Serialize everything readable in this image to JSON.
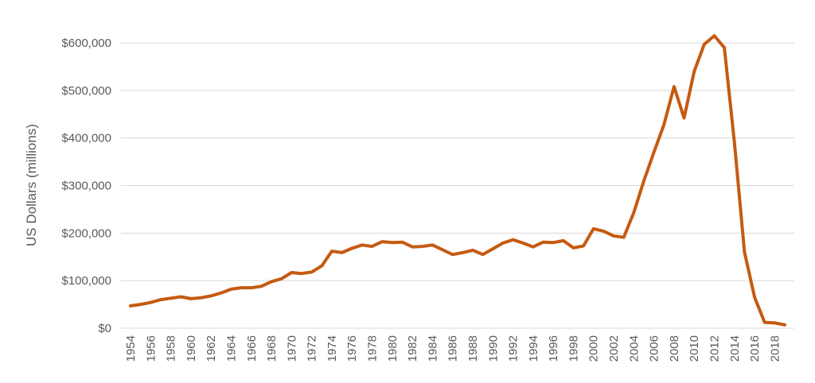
{
  "chart_data": {
    "type": "line",
    "title": "",
    "xlabel": "",
    "ylabel": "US Dollars (millions)",
    "ylim": [
      0,
      600000
    ],
    "y_ticks": [
      0,
      100000,
      200000,
      300000,
      400000,
      500000,
      600000
    ],
    "y_tick_labels": [
      "$0",
      "$100,000",
      "$200,000",
      "$300,000",
      "$400,000",
      "$500,000",
      "$600,000"
    ],
    "x_tick_labels": [
      "1954",
      "1956",
      "1958",
      "1960",
      "1962",
      "1964",
      "1966",
      "1968",
      "1970",
      "1972",
      "1974",
      "1976",
      "1978",
      "1980",
      "1982",
      "1984",
      "1986",
      "1988",
      "1990",
      "1992",
      "1994",
      "1996",
      "1998",
      "2000",
      "2002",
      "2004",
      "2006",
      "2008",
      "2010",
      "2012",
      "2014",
      "2016",
      "2018"
    ],
    "xlim": [
      1954,
      2019
    ],
    "grid": true,
    "legend": "none",
    "color": "#C55A11",
    "x": [
      1954,
      1955,
      1956,
      1957,
      1958,
      1959,
      1960,
      1961,
      1962,
      1963,
      1964,
      1965,
      1966,
      1967,
      1968,
      1969,
      1970,
      1971,
      1972,
      1973,
      1974,
      1975,
      1976,
      1977,
      1978,
      1979,
      1980,
      1981,
      1982,
      1983,
      1984,
      1985,
      1986,
      1987,
      1988,
      1989,
      1990,
      1991,
      1992,
      1993,
      1994,
      1995,
      1996,
      1997,
      1998,
      1999,
      2000,
      2001,
      2002,
      2003,
      2004,
      2005,
      2006,
      2007,
      2008,
      2009,
      2010,
      2011,
      2012,
      2013,
      2014,
      2015,
      2016,
      2017,
      2018,
      2019
    ],
    "values": [
      47000,
      50000,
      54000,
      60000,
      63000,
      66000,
      62000,
      64000,
      68000,
      74000,
      82000,
      85000,
      85000,
      88000,
      98000,
      104000,
      117000,
      115000,
      118000,
      131000,
      162000,
      159000,
      168000,
      175000,
      172000,
      182000,
      180000,
      181000,
      171000,
      172000,
      175000,
      165000,
      155000,
      159000,
      164000,
      155000,
      167000,
      179000,
      186000,
      179000,
      171000,
      181000,
      180000,
      184000,
      169000,
      173000,
      209000,
      204000,
      194000,
      191000,
      243000,
      310000,
      370000,
      428000,
      508000,
      442000,
      540000,
      597000,
      615000,
      590000,
      390000,
      160000,
      65000,
      12000,
      11000,
      7000
    ]
  }
}
